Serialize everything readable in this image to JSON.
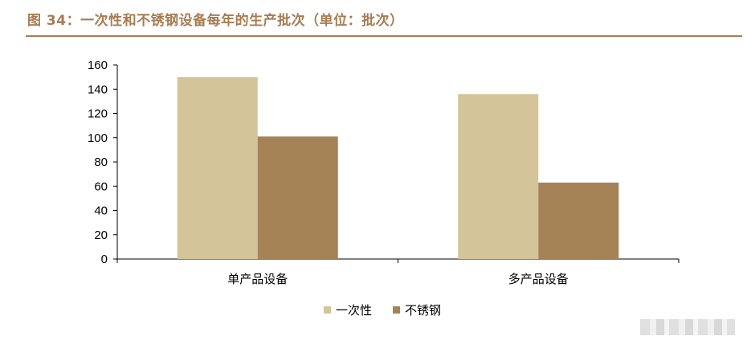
{
  "figure": {
    "title": "图 34：一次性和不锈钢设备每年的生产批次（单位：批次）"
  },
  "chart_data": {
    "type": "bar",
    "title": "图 34：一次性和不锈钢设备每年的生产批次（单位：批次）",
    "categories": [
      "单产品设备",
      "多产品设备"
    ],
    "series": [
      {
        "name": "一次性",
        "values": [
          150,
          136
        ],
        "color": "#d4c499"
      },
      {
        "name": "不锈钢",
        "values": [
          101,
          63
        ],
        "color": "#a58357"
      }
    ],
    "ylim": [
      0,
      160
    ],
    "yticks": [
      0,
      20,
      40,
      60,
      80,
      100,
      120,
      140,
      160
    ],
    "xlabel": "",
    "ylabel": "",
    "grid": false,
    "legend": "bottom"
  }
}
